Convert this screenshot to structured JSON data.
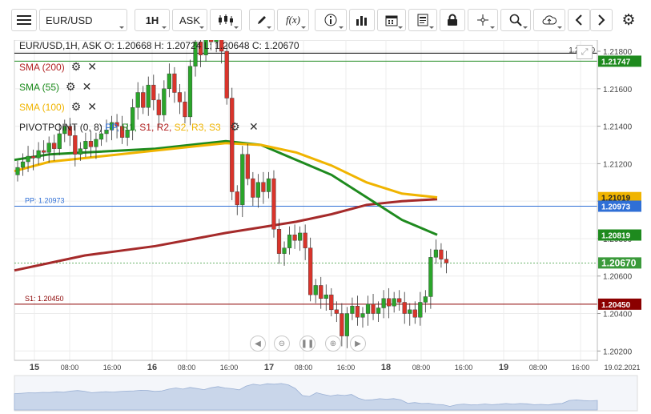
{
  "toolbar": {
    "menu_icon": "hamburger-icon",
    "symbol": "EUR/USD",
    "interval": "1H",
    "price_type": "ASK",
    "chart_type_icon": "candlestick-icon",
    "draw_icon": "pencil-icon",
    "fx_label": "f(x)",
    "info_icon": "info-icon",
    "volume_icon": "bar-chart-icon",
    "calendar_icon": "calendar-icon",
    "report_icon": "document-icon",
    "lock_icon": "lock-icon",
    "crosshair_icon": "crosshair-icon",
    "zoom_icon": "zoom-icon",
    "cloud_icon": "cloud-upload-icon",
    "prev_icon": "chevron-left-icon",
    "next_icon": "chevron-right-icon",
    "settings_icon": "gear-icon"
  },
  "header": {
    "ohlc_text": "EUR/USD,1H, ASK   O: 1.20668 H: 1.20724 L: 1.20648 C: 1.20670",
    "high_line_label": "1.21800"
  },
  "indicators": [
    {
      "label": "SMA (200)",
      "color": "#b22222"
    },
    {
      "label": "SMA (55)",
      "color": "#1a8a1a"
    },
    {
      "label": "SMA (100)",
      "color": "#f0b400"
    }
  ],
  "pivot": {
    "label": "PIVOTPOINT (0, 8)",
    "levels": [
      {
        "text": "PP,",
        "color": "#2f6fd6"
      },
      {
        "text": "R1,",
        "color": "#1a8a1a"
      },
      {
        "text": "S1,",
        "color": "#b22222"
      },
      {
        "text": "R2,",
        "color": "#b22222"
      },
      {
        "text": "S2,",
        "color": "#f0b400"
      },
      {
        "text": "R3,",
        "color": "#f0b400"
      },
      {
        "text": "S3",
        "color": "#f0b400"
      }
    ]
  },
  "colors": {
    "up": "#2aa52a",
    "down": "#d9342b",
    "pp": "#2f6fd6",
    "s1": "#8b0000",
    "sma200": "#a52a2a",
    "sma55": "#1e8a1e",
    "sma100": "#f0b400"
  },
  "chart_data": {
    "type": "candlestick",
    "symbol": "EUR/USD",
    "interval": "1H",
    "ylim": [
      1.2015,
      1.2186
    ],
    "y_ticks": [
      "1.21800",
      "1.21600",
      "1.21400",
      "1.21200",
      "1.21000",
      "1.20800",
      "1.20600",
      "1.20400",
      "1.20200"
    ],
    "x_labels": [
      "15",
      "08:00",
      "16:00",
      "16",
      "08:00",
      "16:00",
      "17",
      "08:00",
      "16:00",
      "18",
      "08:00",
      "16:00",
      "19",
      "08:00",
      "16:00",
      "19.02.2021"
    ],
    "price_labels": [
      {
        "value": 1.21747,
        "text": "1.21747",
        "bg": "#1e8a1e"
      },
      {
        "value": 1.21019,
        "text": "1.21019",
        "bg": "#f0b400"
      },
      {
        "value": 1.20973,
        "text": "1.20973",
        "bg": "#2f6fd6"
      },
      {
        "value": 1.20819,
        "text": "1.20819",
        "bg": "#1e8a1e"
      },
      {
        "value": 1.2067,
        "text": "1.20670",
        "bg": "#3a9a3a"
      },
      {
        "value": 1.2045,
        "text": "1.20450",
        "bg": "#8b0000"
      }
    ],
    "levels": [
      {
        "name": "PP",
        "label": "PP: 1.20973",
        "value": 1.20973
      },
      {
        "name": "S1",
        "label": "S1: 1.20450",
        "value": 1.2045
      },
      {
        "name": "R1",
        "value": 1.21747
      }
    ],
    "last_close": 1.2067,
    "closes": [
      1.2118,
      1.2121,
      1.2124,
      1.2123,
      1.2127,
      1.2126,
      1.2131,
      1.2128,
      1.2136,
      1.214,
      1.2135,
      1.2125,
      1.2128,
      1.2132,
      1.2129,
      1.2133,
      1.2136,
      1.2138,
      1.2142,
      1.214,
      1.2134,
      1.2138,
      1.215,
      1.2158,
      1.215,
      1.2162,
      1.2154,
      1.2146,
      1.216,
      1.2168,
      1.2158,
      1.2153,
      1.2145,
      1.2172,
      1.2185,
      1.2178,
      1.2188,
      1.2185,
      1.219,
      1.218,
      1.2155,
      1.2105,
      1.2098,
      1.2125,
      1.2112,
      1.2102,
      1.211,
      1.2105,
      1.2112,
      1.2085,
      1.2072,
      1.2075,
      1.2082,
      1.2079,
      1.2083,
      1.2075,
      1.205,
      1.2055,
      1.2048,
      1.205,
      1.2042,
      1.204,
      1.2028,
      1.204,
      1.2044,
      1.2038,
      1.204,
      1.2045,
      1.204,
      1.2043,
      1.2048,
      1.2044,
      1.2048,
      1.2046,
      1.204,
      1.2042,
      1.2038,
      1.2046,
      1.2049,
      1.207,
      1.2074,
      1.2069,
      1.2067
    ],
    "series": [
      {
        "name": "SMA (200)",
        "x": [
          0,
          10,
          20,
          40,
          60,
          80,
          90,
          100,
          110,
          120
        ],
        "y": [
          1.2063,
          1.2067,
          1.2071,
          1.2076,
          1.2083,
          1.2089,
          1.2093,
          1.2098,
          1.21,
          1.2101
        ]
      },
      {
        "name": "SMA (55)",
        "x": [
          0,
          10,
          20,
          40,
          60,
          70,
          80,
          90,
          100,
          110,
          120
        ],
        "y": [
          1.2122,
          1.2125,
          1.2126,
          1.2128,
          1.2132,
          1.213,
          1.2122,
          1.2114,
          1.2102,
          1.209,
          1.2082
        ]
      },
      {
        "name": "SMA (100)",
        "x": [
          0,
          10,
          20,
          40,
          60,
          70,
          80,
          90,
          100,
          110,
          120
        ],
        "y": [
          1.2116,
          1.2121,
          1.2123,
          1.2127,
          1.2131,
          1.213,
          1.2126,
          1.2119,
          1.211,
          1.2104,
          1.2102
        ]
      }
    ]
  }
}
